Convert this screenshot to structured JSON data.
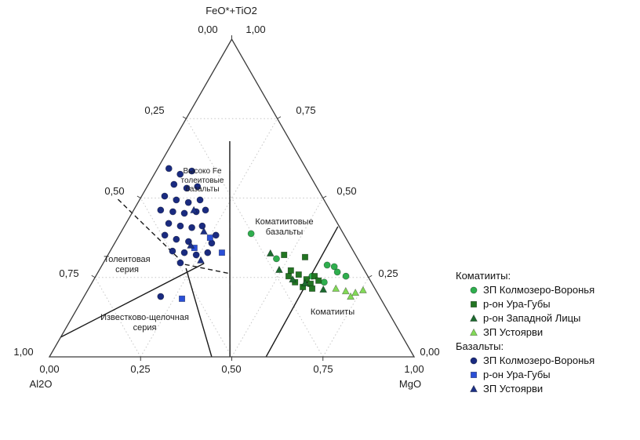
{
  "chart_data": {
    "type": "ternary-scatter",
    "axes": {
      "top_label": "FeO*+TiO2",
      "bottom_left_label": "Al2O",
      "bottom_right_label": "MgO",
      "left_ticks": [
        "0,00",
        "0,25",
        "0,50",
        "0,75",
        "1,00"
      ],
      "right_ticks": [
        "1,00",
        "0,75",
        "0,50",
        "0,25",
        "0,00"
      ],
      "bottom_ticks": [
        "0,00",
        "0,25",
        "0,50",
        "0,75",
        "1,00"
      ],
      "grid_step": 0.25,
      "grid_style": "dotted"
    },
    "regions": {
      "high_fe_tholeiitic": "Высоко Fe\nтолеитовые\nбазальты",
      "komatiitic_basalts": "Коматиитовые\nбазальты",
      "tholeiitic_series": "Толеитовая\nсерия",
      "calc_alkaline_series": "Известково-щелочная\nсерия",
      "komatiites": "Коматииты"
    },
    "boundary_lines": [
      {
        "style": "solid",
        "from": [
          0.062,
          0.0
        ],
        "to": [
          0.294,
          0.277
        ]
      },
      {
        "style": "solid",
        "from": [
          0.279,
          0.235
        ],
        "to": [
          0.0,
          0.445
        ]
      },
      {
        "style": "solid",
        "from": [
          0.679,
          0.155
        ],
        "to": [
          0.0,
          0.495
        ]
      },
      {
        "style": "solid",
        "from": [
          0.0,
          0.594
        ],
        "to": [
          0.41,
          0.586
        ]
      },
      {
        "style": "dashed",
        "from": [
          0.496,
          -0.06
        ],
        "to": [
          0.291,
          0.226
        ]
      },
      {
        "style": "dashed",
        "from": [
          0.291,
          0.226
        ],
        "to": [
          0.262,
          0.364
        ]
      }
    ],
    "points_format": "[FeO*+TiO2, MgO] fractions; Al2O = 1 - FeO*+TiO2 - MgO",
    "legend": {
      "groups": [
        {
          "title": "Коматииты:"
        },
        {
          "title": "Базальты:"
        }
      ]
    },
    "series": [
      {
        "key": "komatiite-kolmozero-voronya",
        "label": "ЗП Колмозеро-Воронья",
        "group": "Коматииты",
        "marker": "circle",
        "color": "#2fae4e",
        "points": [
          [
            0.388,
            0.359
          ],
          [
            0.309,
            0.468
          ],
          [
            0.254,
            0.593
          ],
          [
            0.289,
            0.617
          ],
          [
            0.284,
            0.639
          ],
          [
            0.267,
            0.656
          ],
          [
            0.235,
            0.636
          ],
          [
            0.254,
            0.686
          ]
        ]
      },
      {
        "key": "komatiite-ura-guba",
        "label": "р-он Ура-Губы",
        "group": "Коматииты",
        "marker": "square",
        "color": "#227522",
        "points": [
          [
            0.321,
            0.483
          ],
          [
            0.314,
            0.544
          ],
          [
            0.272,
            0.526
          ],
          [
            0.259,
            0.554
          ],
          [
            0.244,
            0.583
          ],
          [
            0.254,
            0.6
          ],
          [
            0.235,
            0.556
          ],
          [
            0.22,
            0.585
          ],
          [
            0.23,
            0.601
          ],
          [
            0.24,
            0.618
          ],
          [
            0.254,
            0.529
          ],
          [
            0.215,
            0.613
          ]
        ]
      },
      {
        "key": "komatiite-zapadnaya-litsa",
        "label": "р-он Западной Лицы",
        "group": "Коматииты",
        "marker": "triangle",
        "color": "#1d6b30",
        "points": [
          [
            0.326,
            0.443
          ],
          [
            0.274,
            0.493
          ],
          [
            0.244,
            0.545
          ],
          [
            0.232,
            0.585
          ],
          [
            0.212,
            0.645
          ]
        ]
      },
      {
        "key": "komatiite-ustoyarvi",
        "label": "ЗП Устоярви",
        "group": "Коматииты",
        "marker": "triangle",
        "color": "#82d957",
        "points": [
          [
            0.215,
            0.678
          ],
          [
            0.207,
            0.709
          ],
          [
            0.202,
            0.738
          ],
          [
            0.21,
            0.755
          ],
          [
            0.19,
            0.731
          ]
        ]
      },
      {
        "key": "basalt-kolmozero-voronya",
        "label": "ЗП Колмозеро-Воронья",
        "group": "Базальты",
        "marker": "circle",
        "color": "#1a2b80",
        "points": [
          [
            0.593,
            0.031
          ],
          [
            0.575,
            0.071
          ],
          [
            0.585,
            0.098
          ],
          [
            0.543,
            0.07
          ],
          [
            0.531,
            0.111
          ],
          [
            0.536,
            0.138
          ],
          [
            0.506,
            0.063
          ],
          [
            0.494,
            0.101
          ],
          [
            0.486,
            0.138
          ],
          [
            0.494,
            0.166
          ],
          [
            0.462,
            0.074
          ],
          [
            0.457,
            0.11
          ],
          [
            0.452,
            0.144
          ],
          [
            0.457,
            0.174
          ],
          [
            0.462,
            0.197
          ],
          [
            0.42,
            0.117
          ],
          [
            0.412,
            0.153
          ],
          [
            0.407,
            0.187
          ],
          [
            0.412,
            0.213
          ],
          [
            0.383,
            0.125
          ],
          [
            0.37,
            0.163
          ],
          [
            0.363,
            0.2
          ],
          [
            0.358,
            0.266
          ],
          [
            0.333,
            0.171
          ],
          [
            0.328,
            0.206
          ],
          [
            0.321,
            0.242
          ],
          [
            0.328,
            0.27
          ],
          [
            0.296,
            0.211
          ],
          [
            0.19,
            0.21
          ],
          [
            0.383,
            0.265
          ]
        ]
      },
      {
        "key": "basalt-ura-guba",
        "label": "р-он Ура-Губы",
        "group": "Базальты",
        "marker": "square",
        "color": "#2a4fd6",
        "points": [
          [
            0.375,
            0.253
          ],
          [
            0.328,
            0.309
          ],
          [
            0.183,
            0.272
          ],
          [
            0.343,
            0.226
          ]
        ]
      },
      {
        "key": "basalt-ustoyarvi",
        "label": "ЗП Устоярви",
        "group": "Базальты",
        "marker": "triangle",
        "color": "#1d3186",
        "points": [
          [
            0.462,
            0.165
          ],
          [
            0.395,
            0.226
          ],
          [
            0.351,
            0.212
          ],
          [
            0.304,
            0.263
          ]
        ]
      }
    ]
  }
}
